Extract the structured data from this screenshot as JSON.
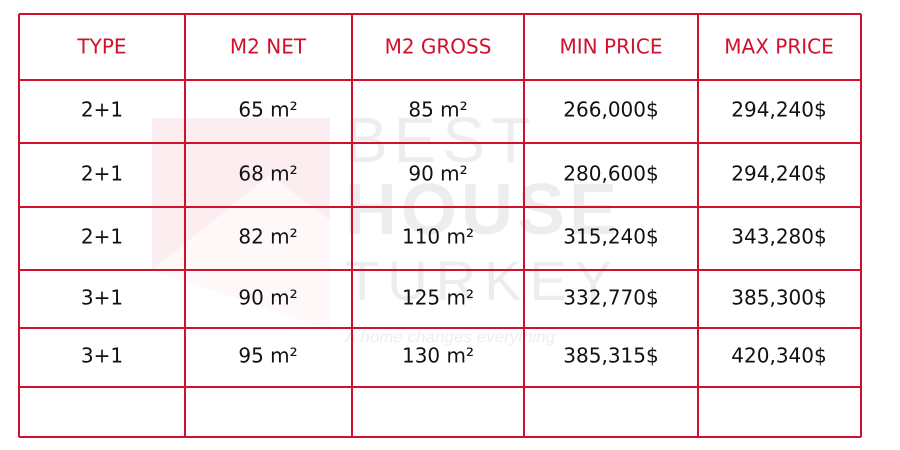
{
  "table": {
    "header": [
      "TYPE",
      "M2 NET",
      "M2 GROSS",
      "MIN PRICE",
      "MAX PRICE"
    ],
    "rows": [
      [
        "2+1",
        "65 m²",
        "85 m²",
        "266,000$",
        "294,240$"
      ],
      [
        "2+1",
        "68 m²",
        "90 m²",
        "280,600$",
        "294,240$"
      ],
      [
        "2+1",
        "82 m²",
        "110 m²",
        "315,240$",
        "343,280$"
      ],
      [
        "3+1",
        "90 m²",
        "125 m²",
        "332,770$",
        "385,300$"
      ],
      [
        "3+1",
        "95 m²",
        "130 m²",
        "385,315$",
        "420,340$"
      ]
    ]
  },
  "watermark": {
    "line1": "BEST",
    "line2": "HOUSE",
    "line3": "TURKEY",
    "tagline": "A home changes everything"
  }
}
